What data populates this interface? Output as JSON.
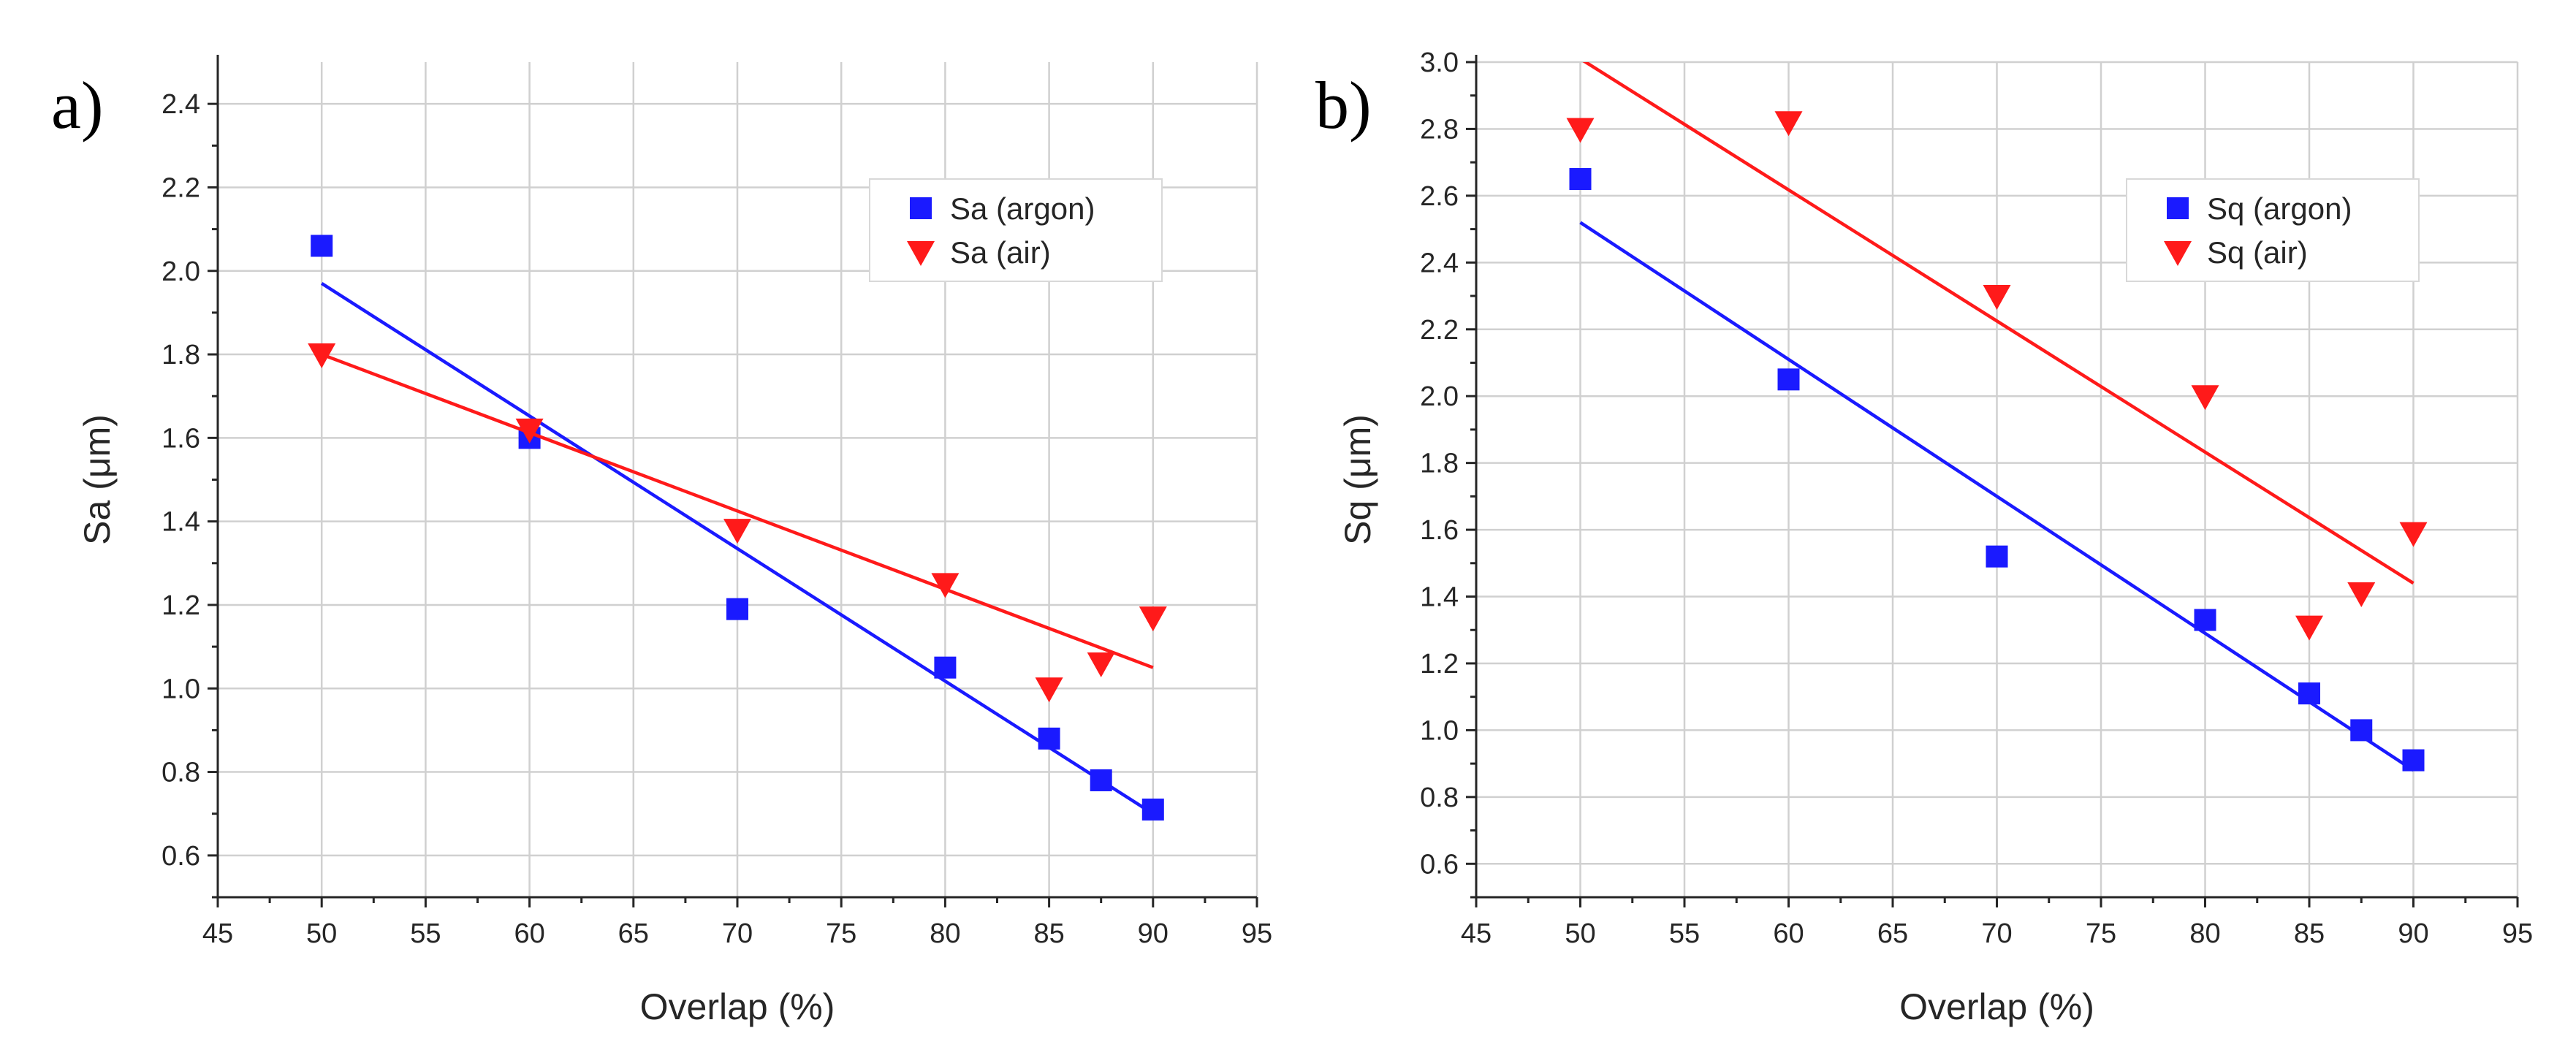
{
  "chart_data": [
    {
      "type": "scatter",
      "panel_label": "a)",
      "xlabel": "Overlap (%)",
      "ylabel": "Sa (μm)",
      "xlim": [
        45,
        95
      ],
      "ylim": [
        0.5,
        2.5
      ],
      "xticks": [
        "45",
        "50",
        "55",
        "60",
        "65",
        "70",
        "75",
        "80",
        "85",
        "90",
        "95"
      ],
      "yticks": [
        "0.6",
        "0.8",
        "1.0",
        "1.2",
        "1.4",
        "1.6",
        "1.8",
        "2.0",
        "2.2",
        "2.4"
      ],
      "grid": true,
      "legend_position": "top-right",
      "series": [
        {
          "name": "Sa (argon)",
          "marker": "square",
          "color": "#1a1aff",
          "x": [
            50,
            60,
            70,
            80,
            85,
            87.5,
            90
          ],
          "y": [
            2.06,
            1.6,
            1.19,
            1.05,
            0.88,
            0.78,
            0.71
          ],
          "fit": {
            "x": [
              50,
              90
            ],
            "y": [
              1.97,
              0.7
            ]
          }
        },
        {
          "name": "Sa (air)",
          "marker": "triangle-down",
          "color": "#ff1a1a",
          "x": [
            50,
            60,
            70,
            80,
            85,
            87.5,
            90
          ],
          "y": [
            1.8,
            1.62,
            1.38,
            1.25,
            1.0,
            1.06,
            1.17
          ],
          "fit": {
            "x": [
              50,
              90
            ],
            "y": [
              1.8,
              1.05
            ]
          }
        }
      ]
    },
    {
      "type": "scatter",
      "panel_label": "b)",
      "xlabel": "Overlap (%)",
      "ylabel": "Sq (μm)",
      "xlim": [
        45,
        95
      ],
      "ylim": [
        0.5,
        3.0
      ],
      "xticks": [
        "45",
        "50",
        "55",
        "60",
        "65",
        "70",
        "75",
        "80",
        "85",
        "90",
        "95"
      ],
      "yticks": [
        "0.6",
        "0.8",
        "1.0",
        "1.2",
        "1.4",
        "1.6",
        "1.8",
        "2.0",
        "2.2",
        "2.4",
        "2.6",
        "2.8",
        "3.0"
      ],
      "grid": true,
      "legend_position": "top-right",
      "series": [
        {
          "name": "Sq (argon)",
          "marker": "square",
          "color": "#1a1aff",
          "x": [
            50,
            60,
            70,
            80,
            85,
            87.5,
            90
          ],
          "y": [
            2.65,
            2.05,
            1.52,
            1.33,
            1.11,
            1.0,
            0.91
          ],
          "fit": {
            "x": [
              50,
              90
            ],
            "y": [
              2.52,
              0.88
            ]
          }
        },
        {
          "name": "Sq (air)",
          "marker": "triangle-down",
          "color": "#ff1a1a",
          "x": [
            50,
            60,
            70,
            80,
            85,
            87.5,
            90
          ],
          "y": [
            2.8,
            2.82,
            2.3,
            2.0,
            1.31,
            1.41,
            1.59
          ],
          "fit": {
            "x": [
              50,
              90
            ],
            "y": [
              3.01,
              1.44
            ]
          }
        }
      ]
    }
  ]
}
